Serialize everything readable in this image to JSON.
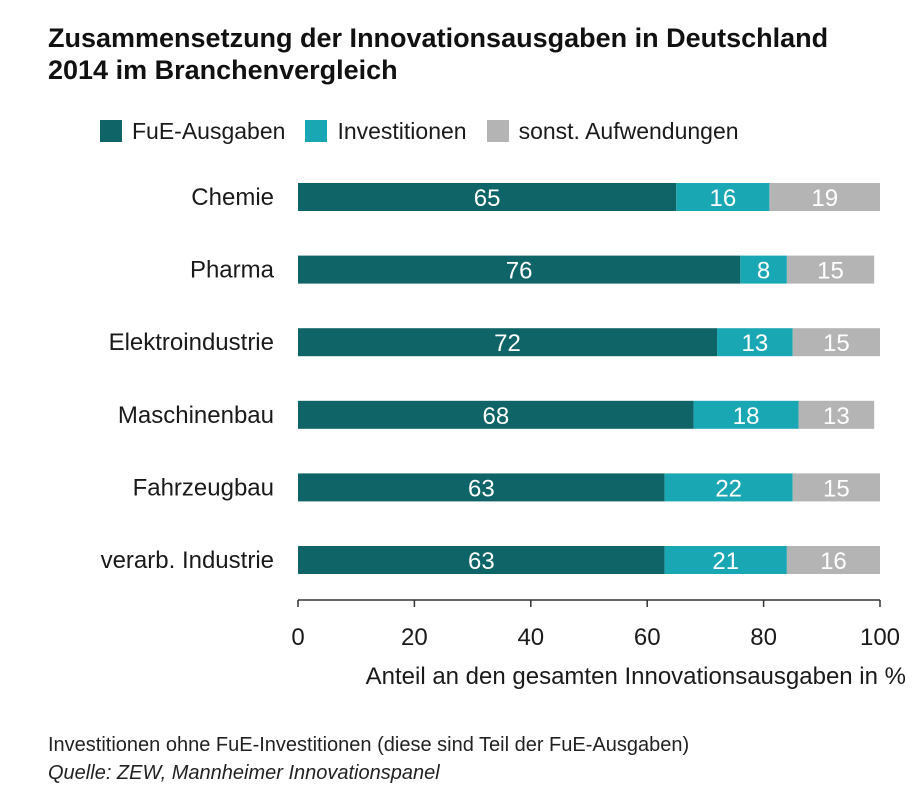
{
  "title": "Zusammensetzung der Innovationsausgaben in Deutschland 2014 im Branchenvergleich",
  "chart_data": {
    "type": "bar",
    "orientation": "horizontal",
    "stacked": true,
    "categories": [
      "Chemie",
      "Pharma",
      "Elektroindustrie",
      "Maschinenbau",
      "Fahrzeugbau",
      "verarb. Industrie"
    ],
    "series": [
      {
        "name": "FuE-Ausgaben",
        "color": "#0e6466",
        "values": [
          65,
          76,
          72,
          68,
          63,
          63
        ]
      },
      {
        "name": "Investitionen",
        "color": "#1aa7b4",
        "values": [
          16,
          8,
          13,
          18,
          22,
          21
        ]
      },
      {
        "name": "sonst. Aufwendungen",
        "color": "#b4b4b4",
        "values": [
          19,
          15,
          15,
          13,
          15,
          16
        ]
      }
    ],
    "xlabel": "Anteil an den gesamten Innovationsausgaben in %",
    "xlim": [
      0,
      100
    ],
    "xticks": [
      0,
      20,
      40,
      60,
      80,
      100
    ],
    "grid": false,
    "legend_position": "top"
  },
  "footnote": "Investitionen ohne FuE-Investitionen (diese sind Teil der FuE-Ausgaben)",
  "source": "Quelle: ZEW, Mannheimer Innovationspanel"
}
